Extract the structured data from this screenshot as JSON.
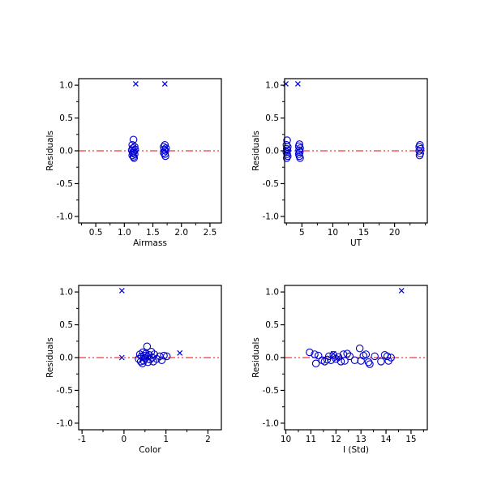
{
  "figure": {
    "background": "#ffffff",
    "description": "2x2 grid of residual scatter plots"
  },
  "style": {
    "marker_color": "#0000cd",
    "rejected_color": "#0000cd",
    "reference_line_color": "#ff0000",
    "axis_color": "#000000"
  },
  "chart_data": [
    {
      "type": "scatter",
      "title": "",
      "xlabel": "Airmass",
      "ylabel": "Residuals",
      "xlim": [
        0.2,
        2.7
      ],
      "ylim": [
        -1.1,
        1.1
      ],
      "xticks": [
        0.5,
        1.0,
        1.5,
        2.0,
        2.5
      ],
      "xtick_labels": [
        "0.5",
        "1.0",
        "1.5",
        "2.0",
        "2.5"
      ],
      "yticks": [
        -1.0,
        -0.5,
        0.0,
        0.5,
        1.0
      ],
      "ytick_labels": [
        "-1.0",
        "-0.5",
        "0.0",
        "0.5",
        "1.0"
      ],
      "x_minor_step": 0.25,
      "y_minor_step": 0.25,
      "reference_line_y": 0.0,
      "grid": false,
      "legend": "none",
      "series": [
        {
          "name": "residuals",
          "marker": "circle",
          "points": [
            [
              1.16,
              0.17
            ],
            [
              1.14,
              0.09
            ],
            [
              1.18,
              0.06
            ],
            [
              1.15,
              0.04
            ],
            [
              1.19,
              0.02
            ],
            [
              1.13,
              0.01
            ],
            [
              1.17,
              -0.01
            ],
            [
              1.15,
              -0.03
            ],
            [
              1.18,
              -0.05
            ],
            [
              1.14,
              -0.07
            ],
            [
              1.16,
              -0.09
            ],
            [
              1.17,
              -0.11
            ],
            [
              1.71,
              0.09
            ],
            [
              1.69,
              0.06
            ],
            [
              1.73,
              0.04
            ],
            [
              1.7,
              0.02
            ],
            [
              1.72,
              0.0
            ],
            [
              1.69,
              -0.03
            ],
            [
              1.71,
              -0.05
            ],
            [
              1.72,
              -0.08
            ]
          ]
        },
        {
          "name": "rejected",
          "marker": "x",
          "points": [
            [
              1.2,
              1.02
            ],
            [
              1.71,
              1.02
            ]
          ]
        }
      ]
    },
    {
      "type": "scatter",
      "title": "",
      "xlabel": "UT",
      "ylabel": "Residuals",
      "xlim": [
        2.2,
        25.3
      ],
      "ylim": [
        -1.1,
        1.1
      ],
      "xticks": [
        5,
        10,
        15,
        20
      ],
      "xtick_labels": [
        "5",
        "10",
        "15",
        "20"
      ],
      "yticks": [
        -1.0,
        -0.5,
        0.0,
        0.5,
        1.0
      ],
      "ytick_labels": [
        "-1.0",
        "-0.5",
        "0.0",
        "0.5",
        "1.0"
      ],
      "x_minor_step": 2.5,
      "y_minor_step": 0.25,
      "reference_line_y": 0.0,
      "grid": false,
      "legend": "none",
      "series": [
        {
          "name": "residuals",
          "marker": "circle",
          "points": [
            [
              2.6,
              0.16
            ],
            [
              2.5,
              0.09
            ],
            [
              2.7,
              0.06
            ],
            [
              2.55,
              0.03
            ],
            [
              2.65,
              0.01
            ],
            [
              2.5,
              -0.02
            ],
            [
              2.6,
              -0.05
            ],
            [
              2.7,
              -0.08
            ],
            [
              2.55,
              -0.11
            ],
            [
              4.6,
              0.1
            ],
            [
              4.5,
              0.07
            ],
            [
              4.7,
              0.04
            ],
            [
              4.55,
              0.01
            ],
            [
              4.65,
              -0.02
            ],
            [
              4.5,
              -0.05
            ],
            [
              4.6,
              -0.08
            ],
            [
              4.7,
              -0.11
            ],
            [
              24.1,
              0.09
            ],
            [
              24.0,
              0.06
            ],
            [
              24.2,
              0.03
            ],
            [
              24.0,
              0.0
            ],
            [
              24.15,
              -0.04
            ],
            [
              24.05,
              -0.07
            ]
          ]
        },
        {
          "name": "rejected",
          "marker": "x",
          "points": [
            [
              2.4,
              1.02
            ],
            [
              4.35,
              1.02
            ]
          ]
        }
      ]
    },
    {
      "type": "scatter",
      "title": "",
      "xlabel": "Color",
      "ylabel": "Residuals",
      "xlim": [
        -1.08,
        2.32
      ],
      "ylim": [
        -1.1,
        1.1
      ],
      "xticks": [
        -1,
        0,
        1,
        2
      ],
      "xtick_labels": [
        "-1",
        "0",
        "1",
        "2"
      ],
      "yticks": [
        -1.0,
        -0.5,
        0.0,
        0.5,
        1.0
      ],
      "ytick_labels": [
        "-1.0",
        "-0.5",
        "0.0",
        "0.5",
        "1.0"
      ],
      "x_minor_step": 0.5,
      "y_minor_step": 0.25,
      "reference_line_y": 0.0,
      "grid": false,
      "legend": "none",
      "series": [
        {
          "name": "residuals",
          "marker": "circle",
          "points": [
            [
              0.38,
              0.05
            ],
            [
              0.42,
              0.02
            ],
            [
              0.35,
              -0.02
            ],
            [
              0.4,
              -0.06
            ],
            [
              0.45,
              0.08
            ],
            [
              0.44,
              -0.09
            ],
            [
              0.48,
              0.03
            ],
            [
              0.5,
              -0.01
            ],
            [
              0.47,
              -0.05
            ],
            [
              0.52,
              0.06
            ],
            [
              0.55,
              0.17
            ],
            [
              0.55,
              0.01
            ],
            [
              0.57,
              -0.07
            ],
            [
              0.6,
              0.04
            ],
            [
              0.62,
              -0.03
            ],
            [
              0.65,
              0.09
            ],
            [
              0.67,
              0.0
            ],
            [
              0.7,
              -0.06
            ],
            [
              0.72,
              0.05
            ],
            [
              0.78,
              -0.02
            ],
            [
              0.85,
              0.02
            ],
            [
              0.9,
              -0.04
            ],
            [
              0.95,
              0.03
            ],
            [
              1.02,
              0.02
            ]
          ]
        },
        {
          "name": "rejected",
          "marker": "x",
          "points": [
            [
              -0.05,
              1.02
            ],
            [
              -0.05,
              0.0
            ],
            [
              1.33,
              0.07
            ]
          ]
        }
      ]
    },
    {
      "type": "scatter",
      "title": "",
      "xlabel": "I (Std)",
      "ylabel": "Residuals",
      "xlim": [
        9.95,
        15.65
      ],
      "ylim": [
        -1.1,
        1.1
      ],
      "xticks": [
        10,
        11,
        12,
        13,
        14,
        15
      ],
      "xtick_labels": [
        "10",
        "11",
        "12",
        "13",
        "14",
        "15"
      ],
      "yticks": [
        -1.0,
        -0.5,
        0.0,
        0.5,
        1.0
      ],
      "ytick_labels": [
        "-1.0",
        "-0.5",
        "0.0",
        "0.5",
        "1.0"
      ],
      "x_minor_step": 0.5,
      "y_minor_step": 0.25,
      "reference_line_y": 0.0,
      "grid": false,
      "legend": "none",
      "series": [
        {
          "name": "residuals",
          "marker": "circle",
          "points": [
            [
              10.95,
              0.08
            ],
            [
              11.15,
              0.05
            ],
            [
              11.2,
              -0.09
            ],
            [
              11.3,
              0.03
            ],
            [
              11.45,
              -0.04
            ],
            [
              11.55,
              -0.06
            ],
            [
              11.65,
              -0.03
            ],
            [
              11.72,
              0.02
            ],
            [
              11.8,
              -0.04
            ],
            [
              11.9,
              0.04
            ],
            [
              12.0,
              -0.02
            ],
            [
              12.1,
              0.01
            ],
            [
              12.2,
              -0.06
            ],
            [
              12.3,
              0.05
            ],
            [
              12.35,
              -0.05
            ],
            [
              12.45,
              0.06
            ],
            [
              12.55,
              0.02
            ],
            [
              12.75,
              -0.04
            ],
            [
              12.95,
              0.14
            ],
            [
              13.0,
              -0.05
            ],
            [
              13.1,
              0.03
            ],
            [
              13.2,
              0.05
            ],
            [
              13.3,
              -0.07
            ],
            [
              13.35,
              -0.1
            ],
            [
              13.55,
              0.02
            ],
            [
              13.8,
              -0.06
            ],
            [
              13.95,
              0.04
            ],
            [
              14.05,
              0.02
            ],
            [
              14.1,
              -0.05
            ],
            [
              14.2,
              0.0
            ]
          ]
        },
        {
          "name": "rejected",
          "marker": "x",
          "points": [
            [
              11.9,
              0.06
            ],
            [
              12.05,
              -0.01
            ],
            [
              14.62,
              1.02
            ]
          ]
        }
      ]
    }
  ]
}
